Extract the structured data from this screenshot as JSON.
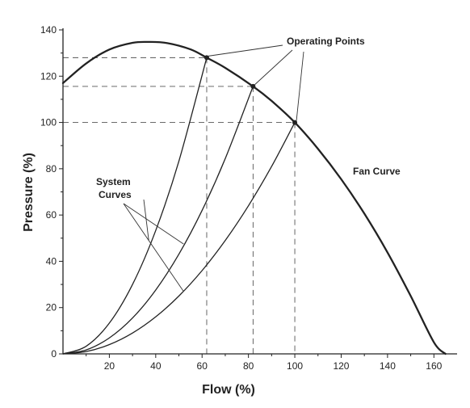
{
  "chart_data": {
    "type": "line",
    "xlabel": "Flow (%)",
    "ylabel": "Pressure (%)",
    "xlim": [
      0,
      170
    ],
    "ylim": [
      0,
      140
    ],
    "xticks": [
      20,
      40,
      60,
      80,
      100,
      120,
      140,
      160
    ],
    "yticks": [
      0,
      20,
      40,
      60,
      80,
      100,
      120,
      140
    ],
    "grid": false,
    "series": [
      {
        "name": "Fan Curve",
        "x": [
          0,
          10,
          20,
          30,
          37,
          45,
          55,
          62,
          70,
          82,
          90,
          100,
          110,
          120,
          130,
          140,
          150,
          160,
          165
        ],
        "y": [
          117,
          125.5,
          131.5,
          134.4,
          134.8,
          134.3,
          131.6,
          128,
          123.6,
          115.6,
          109.3,
          100,
          88.6,
          75.5,
          60.6,
          43.8,
          25,
          5,
          0
        ]
      },
      {
        "name": "System Curves",
        "x": [
          0,
          10,
          20,
          30,
          40,
          50,
          62
        ],
        "y": [
          0,
          3.3,
          13.3,
          30,
          53.3,
          83.3,
          128
        ]
      },
      {
        "name": "System Curves",
        "x": [
          0,
          10,
          20,
          30,
          40,
          50,
          60,
          70,
          82
        ],
        "y": [
          0,
          1.7,
          6.9,
          15.5,
          27.6,
          43.1,
          62,
          84.4,
          115.6
        ]
      },
      {
        "name": "System Curves",
        "x": [
          0,
          10,
          20,
          30,
          40,
          50,
          60,
          70,
          80,
          90,
          100
        ],
        "y": [
          0,
          1,
          4,
          9,
          16,
          25,
          36,
          49,
          64,
          81,
          100
        ]
      }
    ],
    "operating_points": [
      {
        "x": 62,
        "y": 128
      },
      {
        "x": 82,
        "y": 115.6
      },
      {
        "x": 100,
        "y": 100
      }
    ],
    "annotations": {
      "operating_points": "Operating Points",
      "fan_curve": "Fan Curve",
      "system_line1": "System",
      "system_line2": "Curves"
    }
  }
}
